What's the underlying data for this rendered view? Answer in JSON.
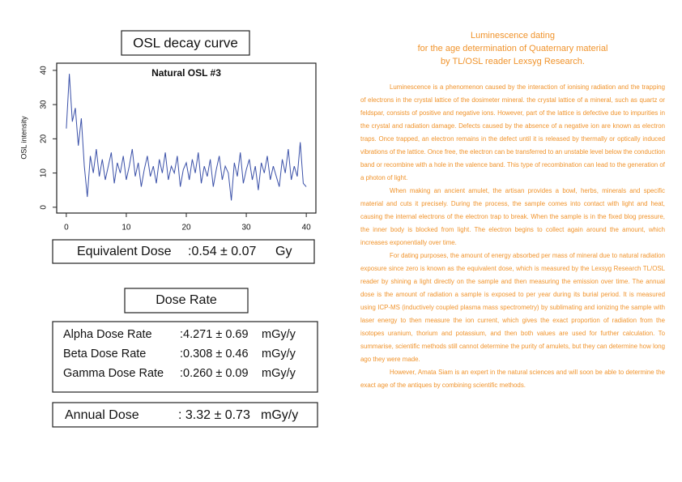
{
  "osl_heading": "OSL decay curve",
  "chart_data": {
    "type": "line",
    "title": "Natural OSL #3",
    "y_label": "OSL intensity",
    "x": [
      0,
      0.5,
      1,
      1.5,
      2,
      2.5,
      3,
      3.5,
      4,
      4.5,
      5,
      5.5,
      6,
      6.5,
      7,
      7.5,
      8,
      8.5,
      9,
      9.5,
      10,
      10.5,
      11,
      11.5,
      12,
      12.5,
      13,
      13.5,
      14,
      14.5,
      15,
      15.5,
      16,
      16.5,
      17,
      17.5,
      18,
      18.5,
      19,
      19.5,
      20,
      20.5,
      21,
      21.5,
      22,
      22.5,
      23,
      23.5,
      24,
      24.5,
      25,
      25.5,
      26,
      26.5,
      27,
      27.5,
      28,
      28.5,
      29,
      29.5,
      30,
      30.5,
      31,
      31.5,
      32,
      32.5,
      33,
      33.5,
      34,
      34.5,
      35,
      35.5,
      36,
      36.5,
      37,
      37.5,
      38,
      38.5,
      39,
      39.5,
      40
    ],
    "series": [
      {
        "color": "#3a50a8",
        "values": [
          23,
          39,
          25,
          29,
          18,
          26,
          12,
          3,
          15,
          10,
          17,
          9,
          14,
          8,
          12,
          16,
          7,
          13,
          10,
          15,
          8,
          12,
          17,
          9,
          13,
          6,
          11,
          15,
          9,
          12,
          7,
          14,
          10,
          16,
          8,
          12,
          10,
          15,
          6,
          11,
          13,
          8,
          14,
          10,
          16,
          7,
          12,
          9,
          14,
          6,
          11,
          15,
          8,
          12,
          10,
          2,
          13,
          9,
          16,
          7,
          11,
          14,
          8,
          12,
          5,
          13,
          10,
          15,
          8,
          12,
          9,
          6,
          14,
          10,
          17,
          8,
          12,
          9,
          19,
          7,
          6
        ]
      }
    ],
    "xlim": [
      -1.6,
      41.6
    ],
    "ylim": [
      -1.7,
      42.1
    ],
    "xticks": [
      0,
      10,
      20,
      30,
      40
    ],
    "yticks": [
      0,
      10,
      20,
      30,
      40
    ]
  },
  "equivalent_dose": {
    "label": "Equivalent Dose",
    "value": ":0.54 ± 0.07",
    "unit": "Gy"
  },
  "dose_rate_heading": "Dose Rate",
  "dose_rates": [
    {
      "label": "Alpha Dose Rate",
      "value": ":4.271 ± 0.69",
      "unit": "mGy/y"
    },
    {
      "label": "Beta Dose Rate",
      "value": ":0.308 ± 0.46",
      "unit": "mGy/y"
    },
    {
      "label": "Gamma Dose Rate",
      "value": ":0.260 ± 0.09",
      "unit": "mGy/y"
    }
  ],
  "annual_dose": {
    "label": "Annual Dose",
    "value": ": 3.32 ± 0.73",
    "unit": "mGy/y"
  },
  "article": {
    "title": [
      "Luminescence dating",
      "for the age determination of Quaternary material",
      "by TL/OSL reader Lexsyg Research."
    ],
    "paragraphs": [
      "Luminescence is a phenomenon caused by the interaction of ionising radiation and the trapping of electrons in the crystal lattice of the dosimeter mineral. the crystal lattice of a mineral, such as quartz or feldspar, consists of positive and negative ions. However, part of the lattice is defective due to impurities in the crystal and radiation damage. Defects caused by the absence of a negative ion are known as electron traps. Once trapped, an electron remains in the defect until it is released by thermally or optically induced vibrations of the lattice. Once free, the electron can be transferred to an unstable level below the conduction band or recombine with a hole in the valence band. This type of recombination can lead to the generation of a photon of light.",
      "When making an ancient amulet, the artisan provides a bowl, herbs, minerals and specific material and cuts it precisely. During the process, the sample comes into contact with light and heat, causing the internal electrons of the electron trap to break. When the sample is in the fixed blog pressure, the inner body is blocked from light. The electron begins to collect again around the amount, which increases exponentially over time.",
      "For dating purposes, the amount of energy absorbed per mass of mineral due to natural radiation exposure since zero is known as the equivalent dose, which is measured by the Lexsyg Research TL/OSL reader by shining a light directly on the sample and then measuring the emission over time. The annual dose is the amount of radiation a sample is exposed to per year during its burial period. It is measured using ICP-MS (inductively coupled plasma mass spectrometry) by sublimating and ionizing the sample with laser energy to then measure the ion current, which gives the exact proportion of radiation from the isotopes uranium, thorium and potassium, and then both values are used for further calculation. To summarise, scientific methods still cannot determine the purity of amulets, but they can determine how long ago they were made.",
      "However, Amata Siam is an expert in the natural sciences and will soon be able to determine the exact age of the antiques by combining scientific methods."
    ]
  }
}
